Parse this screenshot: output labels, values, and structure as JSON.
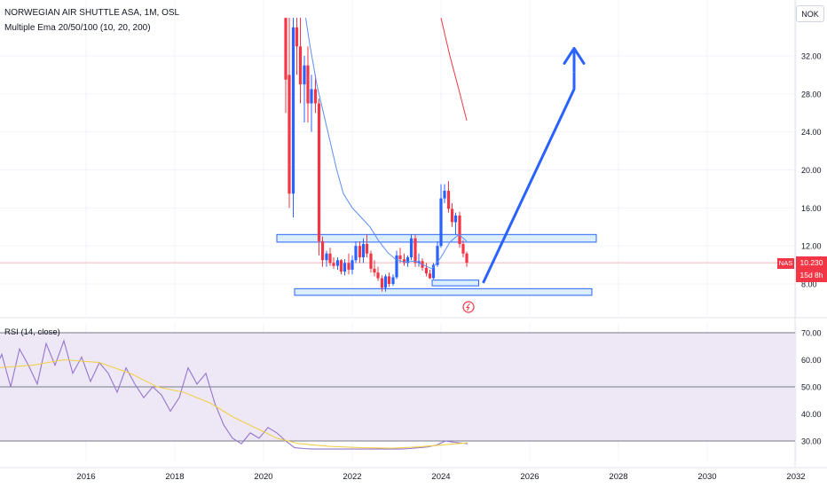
{
  "header": {
    "title": "NORWEGIAN AIR SHUTTLE ASA, 1M, OSL",
    "indicator": "Multiple Ema 20/50/100 (10, 20, 200)"
  },
  "currency_button": "NOK",
  "price_tag": {
    "symbol": "NAS",
    "price": "10.230",
    "countdown": "15d 8h"
  },
  "rsi_header": "RSI (14, close)",
  "colors": {
    "up": "#2962ff",
    "down": "#f23645",
    "ema_fast": "#5b8ff9",
    "ema_slow": "#f23645",
    "rsi_line": "#9575cd",
    "rsi_ma": "#f2d04b",
    "rsi_band": "#ede7f6",
    "zone_fill": "#dbeefc",
    "zone_border": "#2962ff",
    "projection": "#2962ff",
    "last_price_line": "#f7b6bc"
  },
  "chart_data": [
    {
      "type": "candlestick",
      "title": "NORWEGIAN AIR SHUTTLE ASA, 1M, OSL",
      "ylim": [
        5,
        36
      ],
      "y_ticks": [
        "8.00",
        "12.00",
        "16.00",
        "20.00",
        "24.00",
        "28.00",
        "32.00"
      ],
      "x_ticks": [
        "2016",
        "2018",
        "2020",
        "2022",
        "2024",
        "2026",
        "2028",
        "2030",
        "2032"
      ],
      "last_price": 10.23,
      "candles": [
        {
          "t": 2020.5,
          "o": 36,
          "h": 36,
          "l": 26,
          "c": 29.5
        },
        {
          "t": 2020.58,
          "o": 30,
          "h": 36,
          "l": 16,
          "c": 17.5
        },
        {
          "t": 2020.67,
          "o": 17.5,
          "h": 36,
          "l": 15,
          "c": 35
        },
        {
          "t": 2020.75,
          "o": 35,
          "h": 36,
          "l": 30,
          "c": 33
        },
        {
          "t": 2020.83,
          "o": 33,
          "h": 36,
          "l": 27,
          "c": 29
        },
        {
          "t": 2020.92,
          "o": 29,
          "h": 32,
          "l": 25,
          "c": 31
        },
        {
          "t": 2021.0,
          "o": 31,
          "h": 33,
          "l": 25,
          "c": 27
        },
        {
          "t": 2021.08,
          "o": 27,
          "h": 30,
          "l": 24,
          "c": 28.5
        },
        {
          "t": 2021.17,
          "o": 28.5,
          "h": 30,
          "l": 26,
          "c": 27
        },
        {
          "t": 2021.25,
          "o": 27,
          "h": 27.5,
          "l": 11,
          "c": 12.5
        },
        {
          "t": 2021.33,
          "o": 12.5,
          "h": 13,
          "l": 9.8,
          "c": 10.5
        },
        {
          "t": 2021.42,
          "o": 10.5,
          "h": 11.5,
          "l": 9.8,
          "c": 11.2
        },
        {
          "t": 2021.5,
          "o": 11.2,
          "h": 11.8,
          "l": 9.9,
          "c": 10.2
        },
        {
          "t": 2021.58,
          "o": 10.2,
          "h": 10.8,
          "l": 9.6,
          "c": 9.9
        },
        {
          "t": 2021.67,
          "o": 9.9,
          "h": 10.8,
          "l": 9.5,
          "c": 10.5
        },
        {
          "t": 2021.75,
          "o": 10.5,
          "h": 10.6,
          "l": 9.0,
          "c": 9.3
        },
        {
          "t": 2021.83,
          "o": 9.3,
          "h": 10.6,
          "l": 8.9,
          "c": 10.2
        },
        {
          "t": 2021.92,
          "o": 10.2,
          "h": 11.2,
          "l": 9.0,
          "c": 9.5
        },
        {
          "t": 2022.0,
          "o": 9.5,
          "h": 11.0,
          "l": 9.0,
          "c": 10.5
        },
        {
          "t": 2022.08,
          "o": 10.5,
          "h": 12.5,
          "l": 10.2,
          "c": 12.0
        },
        {
          "t": 2022.17,
          "o": 12.0,
          "h": 12.5,
          "l": 10.2,
          "c": 10.8
        },
        {
          "t": 2022.25,
          "o": 10.8,
          "h": 12.8,
          "l": 10.2,
          "c": 12.2
        },
        {
          "t": 2022.33,
          "o": 12.2,
          "h": 13.2,
          "l": 10.8,
          "c": 11.2
        },
        {
          "t": 2022.42,
          "o": 11.2,
          "h": 11.5,
          "l": 9.2,
          "c": 9.6
        },
        {
          "t": 2022.5,
          "o": 9.6,
          "h": 10.5,
          "l": 8.8,
          "c": 9.2
        },
        {
          "t": 2022.58,
          "o": 9.2,
          "h": 9.8,
          "l": 8.3,
          "c": 8.6
        },
        {
          "t": 2022.67,
          "o": 8.6,
          "h": 8.9,
          "l": 7.2,
          "c": 7.6
        },
        {
          "t": 2022.75,
          "o": 7.6,
          "h": 9.0,
          "l": 7.2,
          "c": 8.8
        },
        {
          "t": 2022.83,
          "o": 8.8,
          "h": 9.2,
          "l": 7.7,
          "c": 8.0
        },
        {
          "t": 2022.92,
          "o": 8.0,
          "h": 9.0,
          "l": 7.8,
          "c": 8.7
        },
        {
          "t": 2023.0,
          "o": 8.7,
          "h": 11.5,
          "l": 8.5,
          "c": 11.0
        },
        {
          "t": 2023.08,
          "o": 11.0,
          "h": 11.8,
          "l": 10.2,
          "c": 10.6
        },
        {
          "t": 2023.17,
          "o": 10.6,
          "h": 11.2,
          "l": 9.9,
          "c": 10.2
        },
        {
          "t": 2023.25,
          "o": 10.2,
          "h": 11.0,
          "l": 9.8,
          "c": 10.8
        },
        {
          "t": 2023.33,
          "o": 10.8,
          "h": 13.2,
          "l": 10.5,
          "c": 12.8
        },
        {
          "t": 2023.42,
          "o": 12.8,
          "h": 13.2,
          "l": 9.8,
          "c": 10.2
        },
        {
          "t": 2023.5,
          "o": 10.2,
          "h": 11.2,
          "l": 9.8,
          "c": 10.4
        },
        {
          "t": 2023.58,
          "o": 10.4,
          "h": 10.7,
          "l": 9.4,
          "c": 9.7
        },
        {
          "t": 2023.67,
          "o": 9.7,
          "h": 10.2,
          "l": 8.8,
          "c": 9.1
        },
        {
          "t": 2023.75,
          "o": 9.1,
          "h": 9.5,
          "l": 8.5,
          "c": 8.6
        },
        {
          "t": 2023.83,
          "o": 8.6,
          "h": 10.2,
          "l": 8.5,
          "c": 10.0
        },
        {
          "t": 2023.92,
          "o": 10.0,
          "h": 12.5,
          "l": 9.8,
          "c": 12.0
        },
        {
          "t": 2024.0,
          "o": 12.0,
          "h": 18.5,
          "l": 11.8,
          "c": 17.0
        },
        {
          "t": 2024.08,
          "o": 17.0,
          "h": 18.5,
          "l": 16.5,
          "c": 17.8
        },
        {
          "t": 2024.17,
          "o": 17.8,
          "h": 18.8,
          "l": 15.5,
          "c": 15.9
        },
        {
          "t": 2024.25,
          "o": 15.9,
          "h": 16.5,
          "l": 14.0,
          "c": 14.5
        },
        {
          "t": 2024.33,
          "o": 14.5,
          "h": 15.5,
          "l": 13.2,
          "c": 15.2
        },
        {
          "t": 2024.42,
          "o": 15.2,
          "h": 15.6,
          "l": 11.8,
          "c": 12.2
        },
        {
          "t": 2024.5,
          "o": 12.2,
          "h": 12.6,
          "l": 10.8,
          "c": 11.2
        },
        {
          "t": 2024.58,
          "o": 11.2,
          "h": 11.4,
          "l": 9.8,
          "c": 10.23
        }
      ],
      "ema_fast": [
        [
          2020.95,
          36
        ],
        [
          2021.05,
          33
        ],
        [
          2021.2,
          29
        ],
        [
          2021.35,
          26
        ],
        [
          2021.5,
          23
        ],
        [
          2021.65,
          20
        ],
        [
          2021.8,
          17.5
        ],
        [
          2022.0,
          16
        ],
        [
          2022.2,
          15
        ],
        [
          2022.4,
          14
        ],
        [
          2022.6,
          12.5
        ],
        [
          2022.8,
          11.3
        ],
        [
          2023.0,
          10.5
        ],
        [
          2023.2,
          10.3
        ],
        [
          2023.4,
          10.4
        ],
        [
          2023.6,
          10.0
        ],
        [
          2023.8,
          9.6
        ],
        [
          2024.0,
          10.8
        ],
        [
          2024.2,
          12.4
        ],
        [
          2024.4,
          13.2
        ],
        [
          2024.58,
          12.5
        ]
      ],
      "ema_slow": [
        [
          2024.0,
          36
        ],
        [
          2024.2,
          32
        ],
        [
          2024.4,
          28.5
        ],
        [
          2024.58,
          25.2
        ]
      ],
      "zones": [
        {
          "x0": 2020.3,
          "x1": 2027.5,
          "y0": 12.4,
          "y1": 13.2
        },
        {
          "x0": 2020.7,
          "x1": 2027.4,
          "y0": 6.8,
          "y1": 7.5
        },
        {
          "x0": 2023.8,
          "x1": 2024.85,
          "y0": 7.8,
          "y1": 8.4
        }
      ],
      "projection": [
        [
          2024.95,
          8.1
        ],
        [
          2027.0,
          28.5
        ],
        [
          2027.0,
          30.3
        ]
      ],
      "projection_arrow_tip": [
        2027.0,
        32.8
      ]
    },
    {
      "type": "line",
      "title": "RSI (14, close)",
      "ylim": [
        25,
        72
      ],
      "y_ticks": [
        "30.00",
        "40.00",
        "50.00",
        "60.00",
        "70.00"
      ],
      "bands": [
        30,
        50,
        70
      ],
      "series": [
        {
          "role": "rsi",
          "x": [
            2013.3,
            2013.5,
            2013.7,
            2013.9,
            2014.1,
            2014.3,
            2014.5,
            2014.7,
            2014.9,
            2015.1,
            2015.3,
            2015.5,
            2015.7,
            2015.9,
            2016.1,
            2016.3,
            2016.5,
            2016.7,
            2016.9,
            2017.1,
            2017.3,
            2017.5,
            2017.7,
            2017.9,
            2018.1,
            2018.3,
            2018.5,
            2018.7,
            2018.9,
            2019.1,
            2019.3,
            2019.5,
            2019.7,
            2019.9,
            2020.1,
            2020.3,
            2020.5,
            2020.7,
            2020.9,
            2021.1,
            2021.3,
            2021.5,
            2021.7,
            2021.9,
            2022.1,
            2022.3,
            2022.5,
            2022.7,
            2022.9,
            2023.1,
            2023.3,
            2023.5,
            2023.7,
            2023.9,
            2024.1,
            2024.3,
            2024.6
          ],
          "values": [
            62,
            57,
            66,
            55,
            62,
            50,
            64,
            58,
            51,
            66,
            58,
            67,
            55,
            61,
            52,
            59,
            55,
            48,
            57,
            51,
            46,
            50,
            47,
            41,
            46,
            57,
            51,
            55,
            44,
            36,
            31,
            29,
            33,
            31,
            35,
            33,
            30,
            27.5,
            27.2,
            27,
            27,
            27,
            27,
            27,
            27,
            27,
            27,
            27,
            27,
            27,
            27.2,
            27.5,
            27.8,
            28.5,
            30,
            29.5,
            29
          ]
        },
        {
          "role": "rsi_ma",
          "x": [
            2013.3,
            2014.0,
            2014.8,
            2015.5,
            2016.3,
            2017.0,
            2017.6,
            2018.2,
            2018.8,
            2019.3,
            2019.8,
            2020.3,
            2020.8,
            2021.5,
            2022.2,
            2022.9,
            2023.5,
            2024.0,
            2024.6
          ],
          "values": [
            58,
            57,
            58,
            60,
            59,
            55,
            50,
            48,
            44,
            39,
            35,
            31,
            29,
            28,
            27.5,
            27.3,
            27.8,
            28.5,
            29.3
          ]
        }
      ]
    }
  ]
}
